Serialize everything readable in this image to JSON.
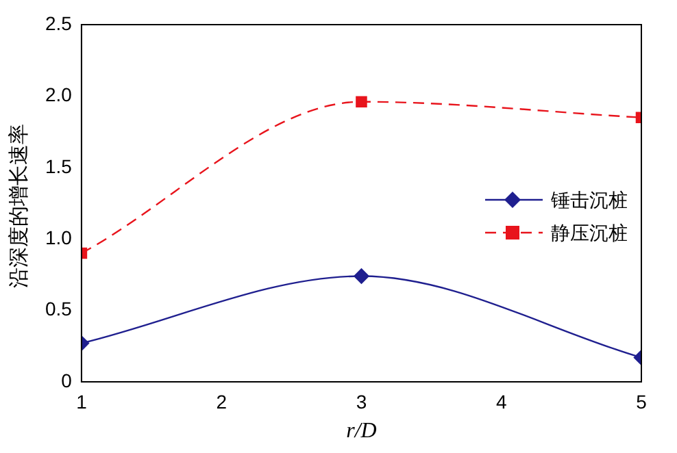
{
  "chart_data": {
    "type": "line",
    "xlabel": "r/D",
    "ylabel": "沿深度的增长速率",
    "x": [
      1,
      3,
      5
    ],
    "series": [
      {
        "name": "锤击沉桩",
        "color": "#1f1f8f",
        "values": [
          0.27,
          0.74,
          0.17
        ],
        "marker": "diamond",
        "line_style": "solid"
      },
      {
        "name": "静压沉桩",
        "color": "#e8141c",
        "values": [
          0.9,
          1.96,
          1.85
        ],
        "marker": "square",
        "line_style": "dashed"
      }
    ],
    "xlim": [
      1,
      5
    ],
    "xticks": [
      1,
      2,
      3,
      4,
      5
    ],
    "ylim": [
      0,
      2.5
    ],
    "yticks": [
      0,
      {
        "value": 0.5,
        "label": "0.5"
      },
      {
        "value": 1,
        "label": "1.0"
      },
      {
        "value": 1.5,
        "label": "1.5"
      },
      {
        "value": 2,
        "label": "2.0"
      },
      {
        "value": 2.5,
        "label": "2.5"
      }
    ],
    "grid": false,
    "legend": "right"
  }
}
